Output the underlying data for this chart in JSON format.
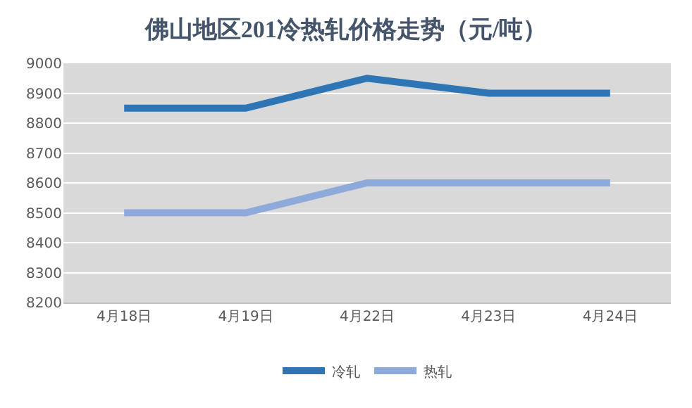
{
  "chart_data": {
    "type": "line",
    "title": "佛山地区201冷热轧价格走势（元/吨）",
    "categories": [
      "4月18日",
      "4月19日",
      "4月22日",
      "4月23日",
      "4月24日"
    ],
    "series": [
      {
        "name": "冷轧",
        "color": "#2e75b6",
        "values": [
          8850,
          8850,
          8950,
          8900,
          8900
        ]
      },
      {
        "name": "热轧",
        "color": "#8eaadb",
        "values": [
          8500,
          8500,
          8600,
          8600,
          8600
        ]
      }
    ],
    "ylim": [
      8200,
      9000
    ],
    "yticks": [
      8200,
      8300,
      8400,
      8500,
      8600,
      8700,
      8800,
      8900,
      9000
    ],
    "grid": "y",
    "legend": "bottom",
    "marker": "none",
    "line_style": "solid"
  }
}
